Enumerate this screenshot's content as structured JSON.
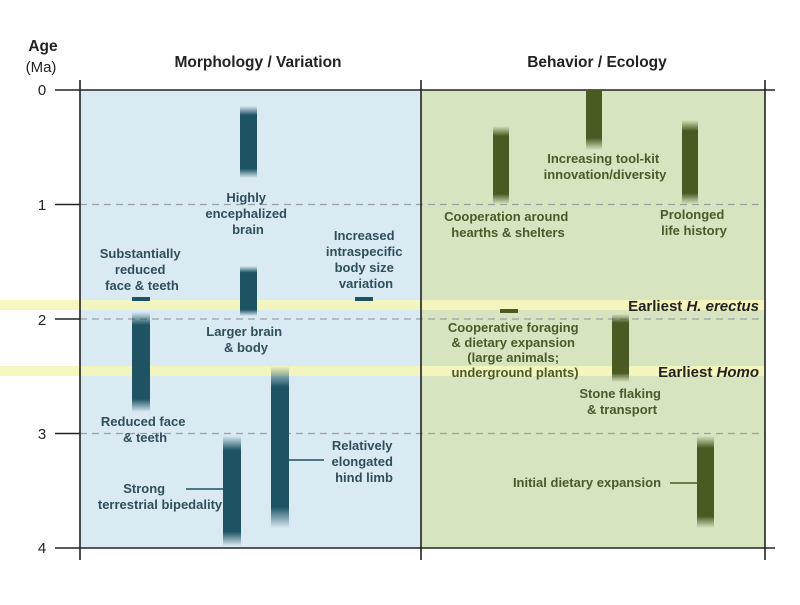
{
  "axis": {
    "title": "Age",
    "unit": "(Ma)",
    "ticks": [
      "0",
      "1",
      "2",
      "3",
      "4"
    ]
  },
  "headers": {
    "left": "Morphology / Variation",
    "right": "Behavior / Ecology"
  },
  "colors": {
    "left_panel_bg": "#d9eaf3",
    "right_panel_bg": "#d6e4bf",
    "morphology_bar": "#1d5362",
    "behavior_bar": "#4a5a23",
    "highlight_band": "#f4f6bd"
  },
  "events": {
    "erectus_prefix": "Earliest ",
    "erectus_italic": "H. erectus",
    "erectus_age_ma": 1.9,
    "homo_prefix": "Earliest ",
    "homo_italic": "Homo",
    "homo_age_ma": 2.45
  },
  "traits": [
    {
      "id": "encephalized",
      "panel": "morphology",
      "lines": [
        "Highly",
        "encephalized",
        "brain"
      ],
      "range_ma": [
        0.1,
        0.75
      ]
    },
    {
      "id": "body-size-variation",
      "panel": "morphology",
      "lines": [
        "Increased",
        "intraspecific",
        "body size",
        "variation"
      ],
      "range_ma": [
        1.8,
        1.8
      ]
    },
    {
      "id": "reduced-face-teeth-substantial",
      "panel": "morphology",
      "lines": [
        "Substantially",
        "reduced",
        "face & teeth"
      ],
      "range_ma": [
        1.8,
        1.8
      ]
    },
    {
      "id": "larger-brain-body",
      "panel": "morphology",
      "lines": [
        "Larger brain",
        "& body"
      ],
      "range_ma": [
        1.5,
        2.0
      ]
    },
    {
      "id": "reduced-face-teeth",
      "panel": "morphology",
      "lines": [
        "Reduced face",
        "& teeth"
      ],
      "range_ma": [
        2.0,
        2.9
      ]
    },
    {
      "id": "elongated-hind-limb",
      "panel": "morphology",
      "lines": [
        "Relatively",
        "elongated",
        "hind limb"
      ],
      "range_ma": [
        2.4,
        3.8
      ]
    },
    {
      "id": "terrestrial-bipedality",
      "panel": "morphology",
      "lines": [
        "Strong",
        "terrestrial bipedality"
      ],
      "range_ma": [
        3.0,
        4.0
      ]
    },
    {
      "id": "tool-kit-innovation",
      "panel": "behavior",
      "lines": [
        "Increasing tool-kit",
        "innovation/diversity"
      ],
      "range_ma": [
        0.0,
        0.5
      ]
    },
    {
      "id": "cooperation-hearths",
      "panel": "behavior",
      "lines": [
        "Cooperation around",
        "hearths & shelters"
      ],
      "range_ma": [
        0.3,
        0.9
      ]
    },
    {
      "id": "prolonged-life-history",
      "panel": "behavior",
      "lines": [
        "Prolonged",
        "life history"
      ],
      "range_ma": [
        0.3,
        0.9
      ]
    },
    {
      "id": "cooperative-foraging",
      "panel": "behavior",
      "lines": [
        "Cooperative foraging",
        "& dietary expansion",
        "(large animals;",
        "underground plants)"
      ],
      "range_ma": [
        1.9,
        1.9
      ]
    },
    {
      "id": "stone-flaking",
      "panel": "behavior",
      "lines": [
        "Stone flaking",
        "& transport"
      ],
      "range_ma": [
        2.0,
        2.5
      ]
    },
    {
      "id": "initial-dietary-expansion",
      "panel": "behavior",
      "lines": [
        "Initial dietary expansion"
      ],
      "range_ma": [
        3.1,
        3.8
      ]
    }
  ]
}
